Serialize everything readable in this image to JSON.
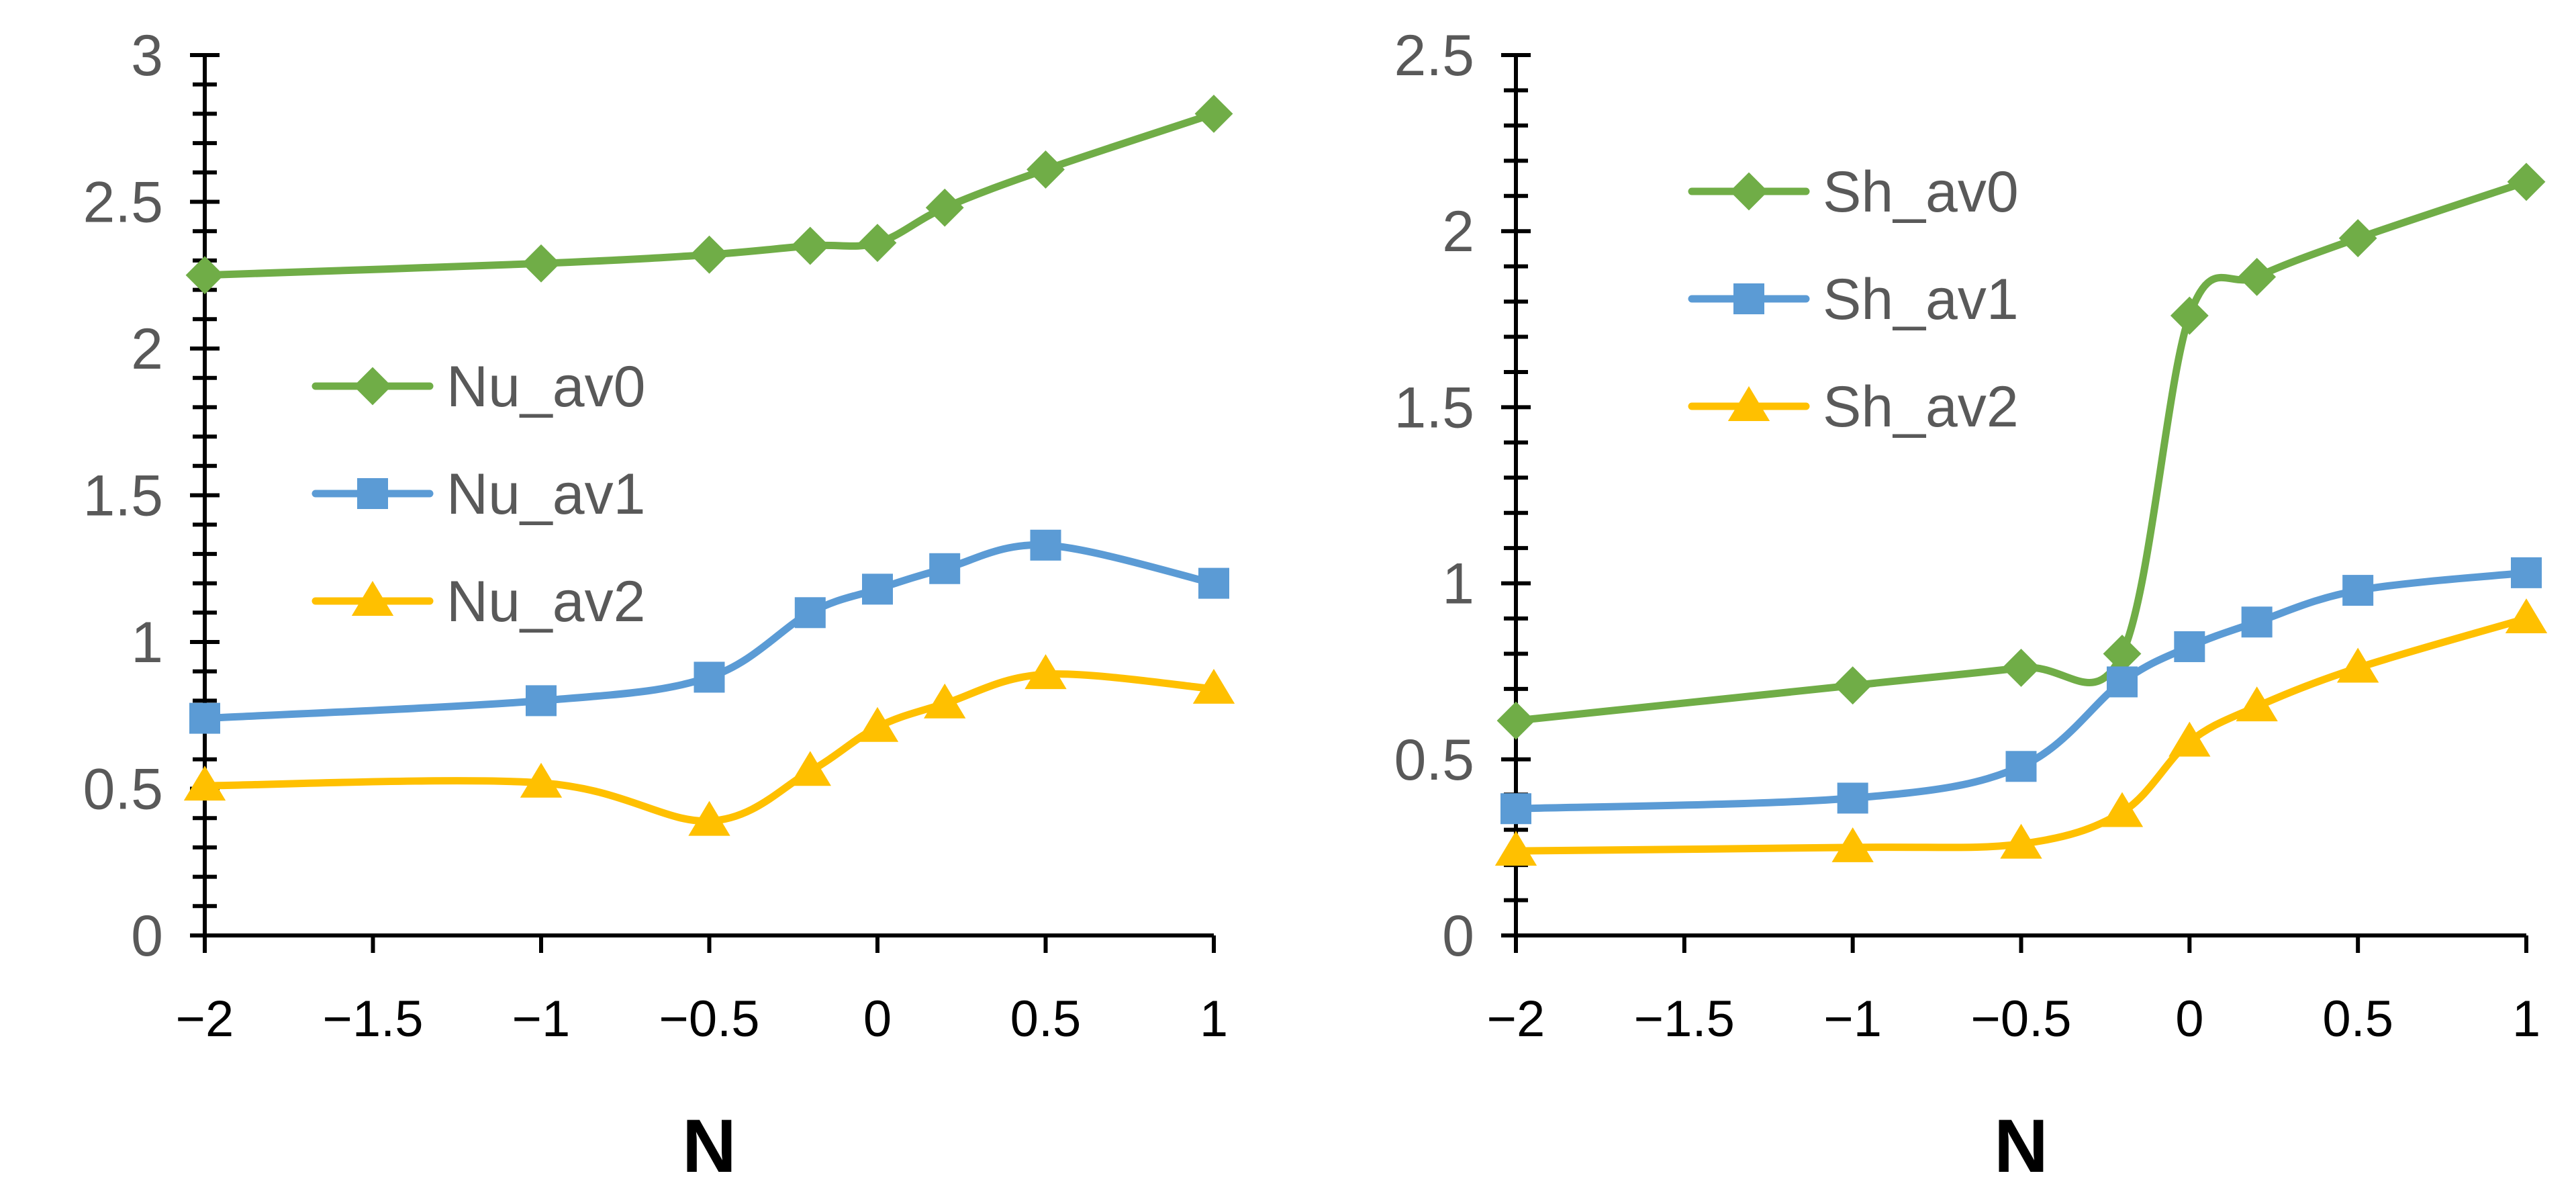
{
  "colors": {
    "Nu_av0": "#70AD47",
    "Nu_av1": "#5B9BD5",
    "Nu_av2": "#FFC000",
    "Sh_av0": "#70AD47",
    "Sh_av1": "#5B9BD5",
    "Sh_av2": "#FFC000",
    "axis": "#000000",
    "tick_text": "#595959",
    "label_text": "#000000"
  },
  "chart_data": [
    {
      "type": "line",
      "smooth": true,
      "x": [
        -2,
        -1,
        -0.5,
        -0.2,
        0,
        0.2,
        0.5,
        1
      ],
      "series": [
        {
          "name": "Nu_av0",
          "marker": "diamond",
          "values": [
            2.25,
            2.29,
            2.32,
            2.35,
            2.36,
            2.48,
            2.61,
            2.8
          ]
        },
        {
          "name": "Nu_av1",
          "marker": "square",
          "values": [
            0.74,
            0.8,
            0.88,
            1.1,
            1.18,
            1.25,
            1.33,
            1.2
          ]
        },
        {
          "name": "Nu_av2",
          "marker": "triangle",
          "values": [
            0.51,
            0.52,
            0.39,
            0.56,
            0.71,
            0.79,
            0.89,
            0.84
          ]
        }
      ],
      "xlabel": "N",
      "ylabel": "",
      "title": "",
      "xlim": [
        -2,
        1
      ],
      "ylim": [
        0,
        3
      ],
      "xticks": [
        -2,
        -1.5,
        -1,
        -0.5,
        0,
        0.5,
        1
      ],
      "xtick_labels": [
        "−2",
        "−1.5",
        "−1",
        "−0.5",
        "0",
        "0.5",
        "1"
      ],
      "yticks": [
        0,
        0.5,
        1,
        1.5,
        2,
        2.5,
        3
      ],
      "ytick_labels": [
        "0",
        "0.5",
        "1",
        "1.5",
        "2",
        "2.5",
        "3"
      ],
      "yminor_step": 0.1,
      "grid": false,
      "legend": "middle-left"
    },
    {
      "type": "line",
      "smooth": true,
      "x": [
        -2,
        -1,
        -0.5,
        -0.2,
        0,
        0.2,
        0.5,
        1
      ],
      "series": [
        {
          "name": "Sh_av0",
          "marker": "diamond",
          "values": [
            0.61,
            0.71,
            0.76,
            0.8,
            1.76,
            1.87,
            1.98,
            2.14
          ]
        },
        {
          "name": "Sh_av1",
          "marker": "square",
          "values": [
            0.36,
            0.39,
            0.48,
            0.72,
            0.82,
            0.89,
            0.98,
            1.03
          ]
        },
        {
          "name": "Sh_av2",
          "marker": "triangle",
          "values": [
            0.24,
            0.25,
            0.26,
            0.35,
            0.55,
            0.65,
            0.76,
            0.9
          ]
        }
      ],
      "xlabel": "N",
      "ylabel": "",
      "title": "",
      "xlim": [
        -2,
        1
      ],
      "ylim": [
        0,
        2.5
      ],
      "xticks": [
        -2,
        -1.5,
        -1,
        -0.5,
        0,
        0.5,
        1
      ],
      "xtick_labels": [
        "−2",
        "−1.5",
        "−1",
        "−0.5",
        "0",
        "0.5",
        "1"
      ],
      "yticks": [
        0,
        0.5,
        1,
        1.5,
        2,
        2.5
      ],
      "ytick_labels": [
        "0",
        "0.5",
        "1",
        "1.5",
        "2",
        "2.5"
      ],
      "yminor_step": 0.1,
      "grid": false,
      "legend": "top-left"
    }
  ]
}
